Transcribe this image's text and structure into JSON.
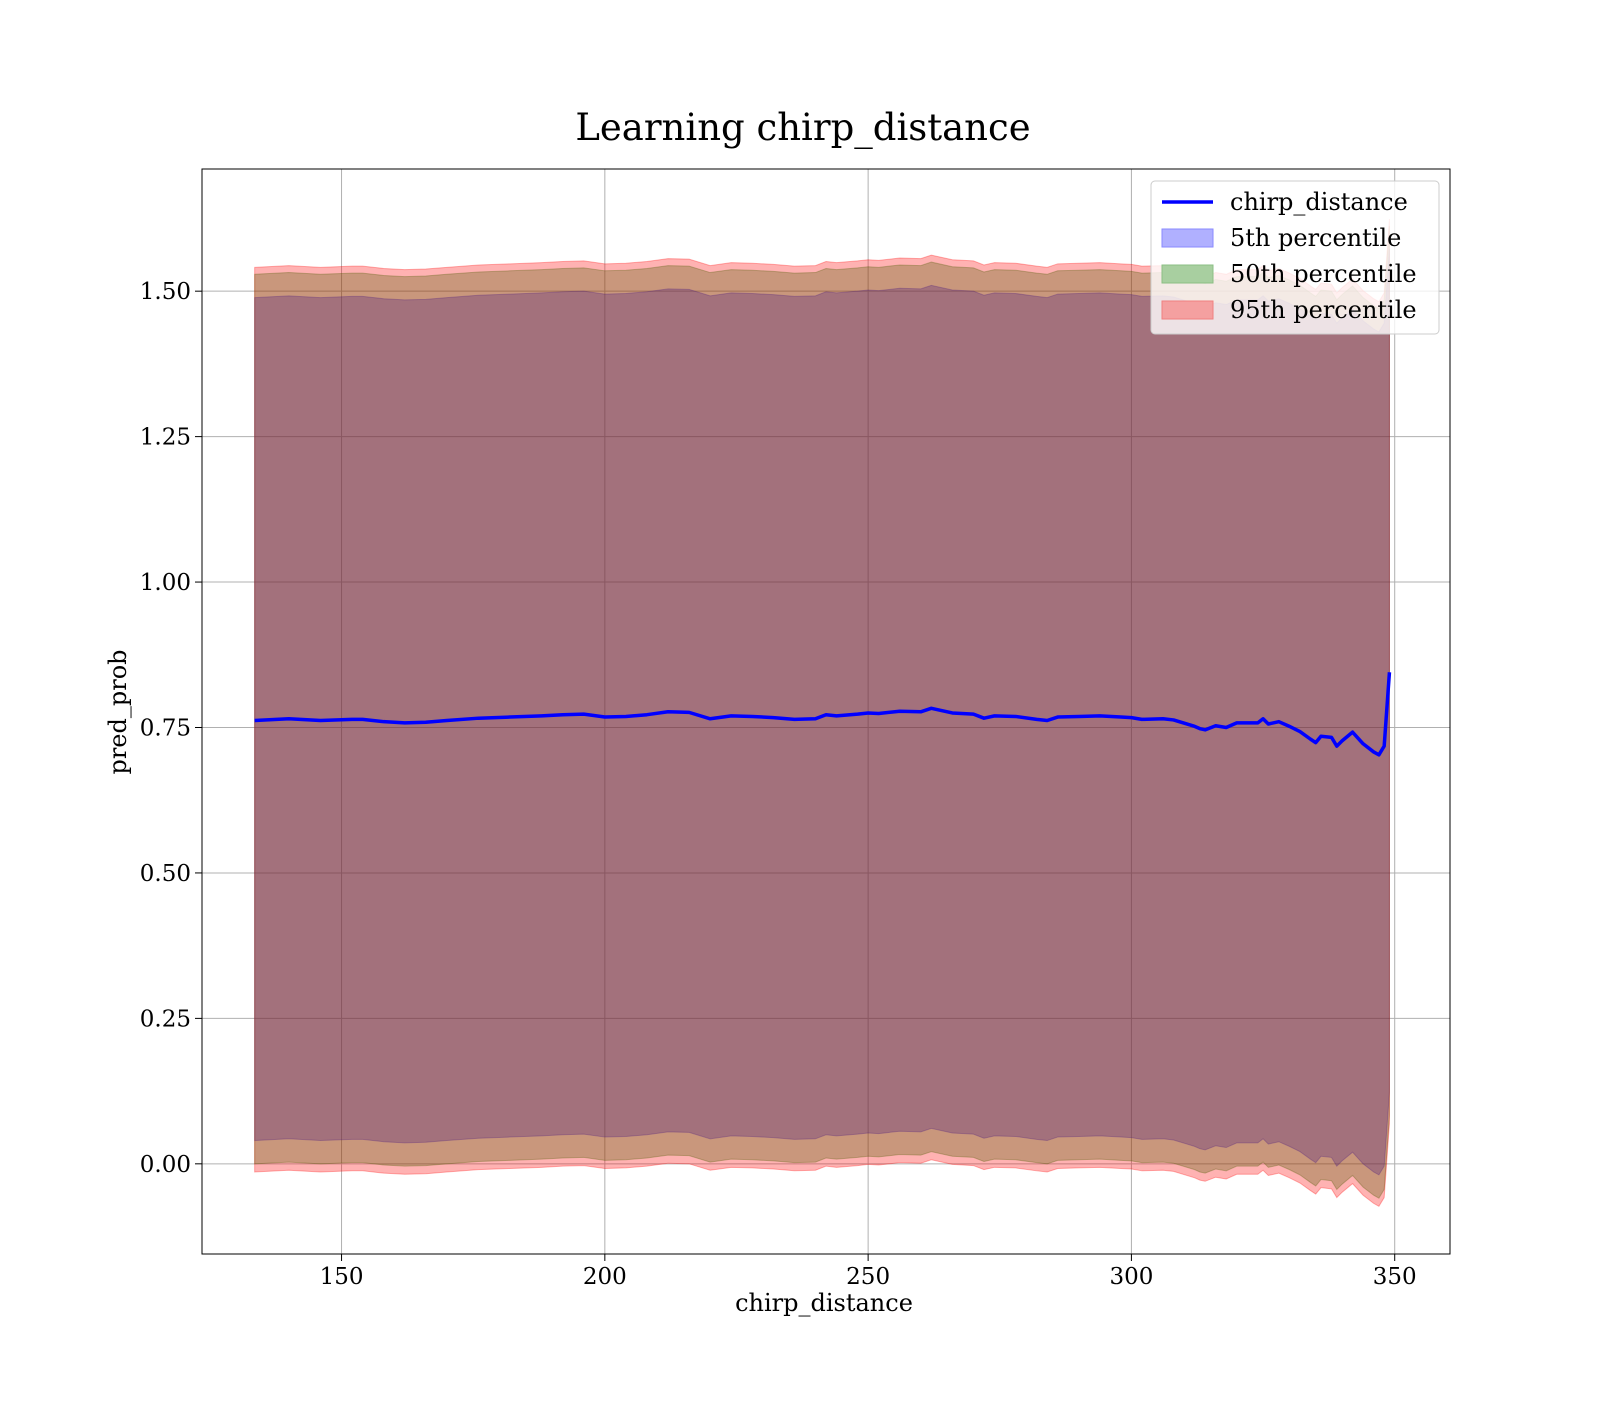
{
  "chart_data": {
    "type": "area",
    "title": "Learning chirp_distance",
    "xlabel": "chirp_distance",
    "ylabel": "pred_prob",
    "xlim": [
      123.5,
      360.5
    ],
    "ylim": [
      -0.155,
      1.71
    ],
    "xticks": [
      150,
      200,
      250,
      300,
      350
    ],
    "yticks": [
      0.0,
      0.25,
      0.5,
      0.75,
      1.0,
      1.25,
      1.5
    ],
    "ytick_labels": [
      "0.00",
      "0.25",
      "0.50",
      "0.75",
      "1.00",
      "1.25",
      "1.50"
    ],
    "xtick_labels": [
      "150",
      "200",
      "250",
      "300",
      "350"
    ],
    "grid": true,
    "legend_position": "top-right",
    "legend": [
      {
        "label": "chirp_distance",
        "kind": "line",
        "color": "#0000ff"
      },
      {
        "label": "5th percentile",
        "kind": "patch",
        "color": "#b0b0ff",
        "edge": "#8a8aff"
      },
      {
        "label": "50th percentile",
        "kind": "patch",
        "color": "#a8cfa0",
        "edge": "#8bbf84"
      },
      {
        "label": "95th percentile",
        "kind": "patch",
        "color": "#f4a0a0",
        "edge": "#f08080"
      }
    ],
    "colors": {
      "line": "#0000ff",
      "p5": "#0000ff",
      "p50": "#008000",
      "p95": "#ff0000"
    },
    "x": [
      133.5,
      140,
      146,
      152,
      154,
      158,
      162,
      166,
      170,
      176,
      182,
      188,
      192,
      196,
      200,
      204,
      208,
      212,
      216,
      220,
      224,
      228,
      232,
      236,
      240,
      242,
      244,
      248,
      250,
      252,
      256,
      260,
      262,
      266,
      270,
      272,
      274,
      278,
      282,
      284,
      286,
      290,
      294,
      298,
      300,
      302,
      306,
      308,
      312,
      313,
      314,
      316,
      318,
      320,
      324,
      325,
      326,
      328,
      330,
      332,
      334,
      335,
      336,
      338,
      339,
      340,
      342,
      344,
      346,
      347,
      348,
      349
    ],
    "series": [
      {
        "name": "chirp_distance",
        "values": [
          0.762,
          0.765,
          0.762,
          0.764,
          0.764,
          0.76,
          0.758,
          0.759,
          0.762,
          0.766,
          0.768,
          0.77,
          0.772,
          0.773,
          0.768,
          0.769,
          0.772,
          0.777,
          0.776,
          0.765,
          0.77,
          0.769,
          0.767,
          0.764,
          0.765,
          0.772,
          0.77,
          0.773,
          0.775,
          0.774,
          0.778,
          0.777,
          0.783,
          0.775,
          0.773,
          0.766,
          0.77,
          0.769,
          0.764,
          0.762,
          0.768,
          0.769,
          0.77,
          0.768,
          0.767,
          0.764,
          0.765,
          0.763,
          0.752,
          0.748,
          0.746,
          0.753,
          0.75,
          0.758,
          0.758,
          0.765,
          0.756,
          0.76,
          0.752,
          0.743,
          0.73,
          0.724,
          0.735,
          0.733,
          0.718,
          0.727,
          0.742,
          0.722,
          0.708,
          0.703,
          0.718,
          0.845
        ]
      }
    ],
    "bands": [
      {
        "name": "5th percentile",
        "lower_offset": -0.722,
        "upper_offset": 0.727
      },
      {
        "name": "50th percentile",
        "lower_offset": -0.762,
        "upper_offset": 0.767
      },
      {
        "name": "95th percentile",
        "lower_offset": -0.776,
        "upper_offset": 0.779
      }
    ]
  }
}
